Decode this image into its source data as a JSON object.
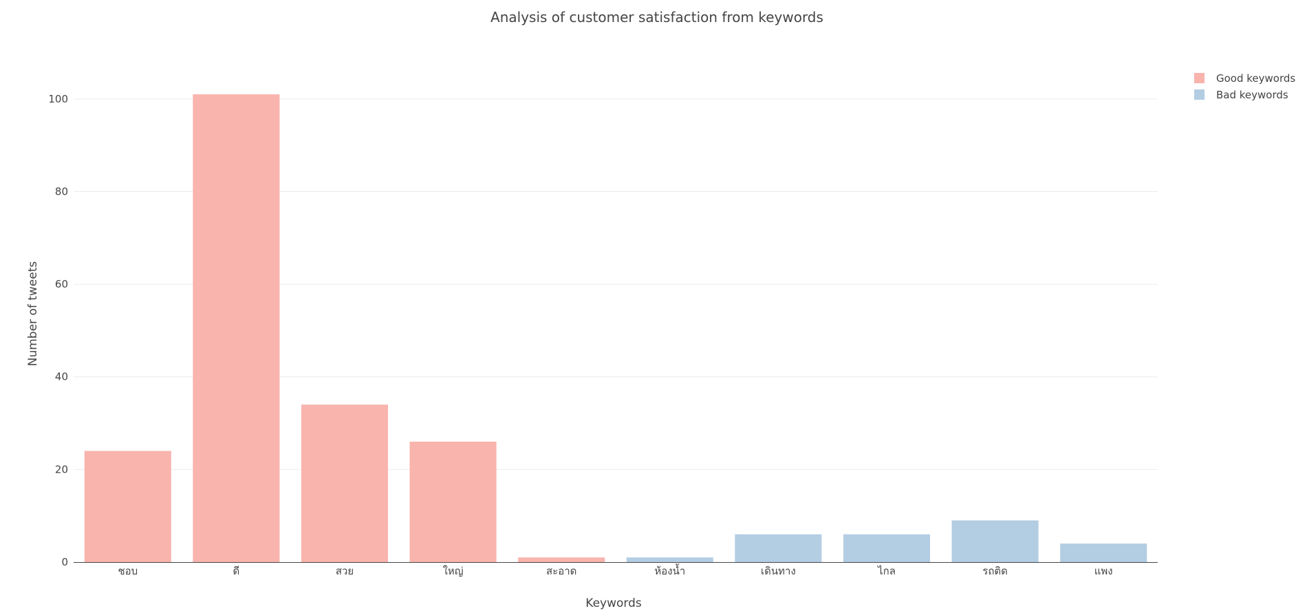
{
  "chart_data": {
    "type": "bar",
    "title": "Analysis of customer satisfaction from keywords",
    "xlabel": "Keywords",
    "ylabel": "Number of tweets",
    "ylim": [
      0,
      108
    ],
    "yticks": [
      0,
      20,
      40,
      60,
      80,
      100
    ],
    "grid": true,
    "legend_position": "top-right",
    "categories": [
      "ชอบ",
      "ดี",
      "สวย",
      "ใหญ่",
      "สะอาด",
      "ห้องน้ำ",
      "เดินทาง",
      "ไกล",
      "รถติด",
      "แพง"
    ],
    "series": [
      {
        "name": "Good keywords",
        "color": "#f9b4ae",
        "values": [
          24,
          101,
          34,
          26,
          1,
          null,
          null,
          null,
          null,
          null
        ]
      },
      {
        "name": "Bad keywords",
        "color": "#b3cde3",
        "values": [
          null,
          null,
          null,
          null,
          null,
          1,
          6,
          6,
          9,
          4
        ]
      }
    ]
  }
}
